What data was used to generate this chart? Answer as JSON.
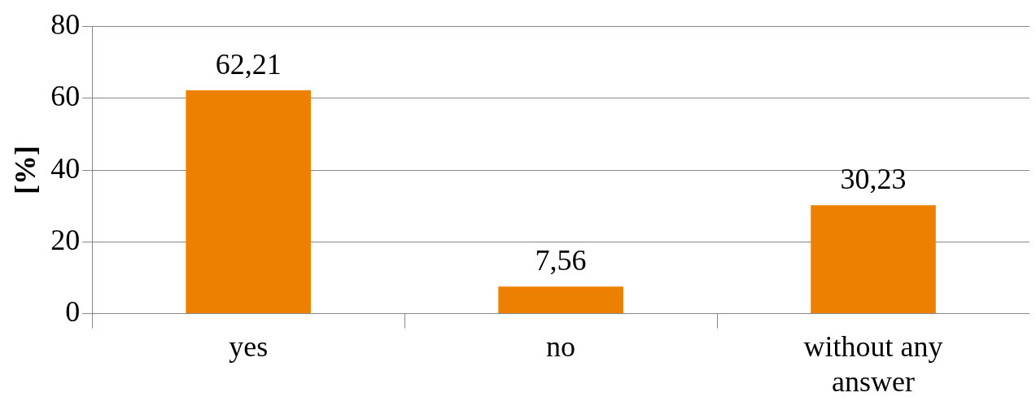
{
  "chart_data": {
    "type": "bar",
    "ylabel": "[%]",
    "categories": [
      "yes",
      "no",
      "without any answer"
    ],
    "values": [
      62.21,
      7.56,
      30.23
    ],
    "value_labels": [
      "62,21",
      "7,56",
      "30,23"
    ],
    "color": "#ee8000",
    "ylim": [
      0,
      80
    ],
    "yticks": [
      0,
      20,
      40,
      60,
      80
    ],
    "grid": "y",
    "legend": false
  }
}
